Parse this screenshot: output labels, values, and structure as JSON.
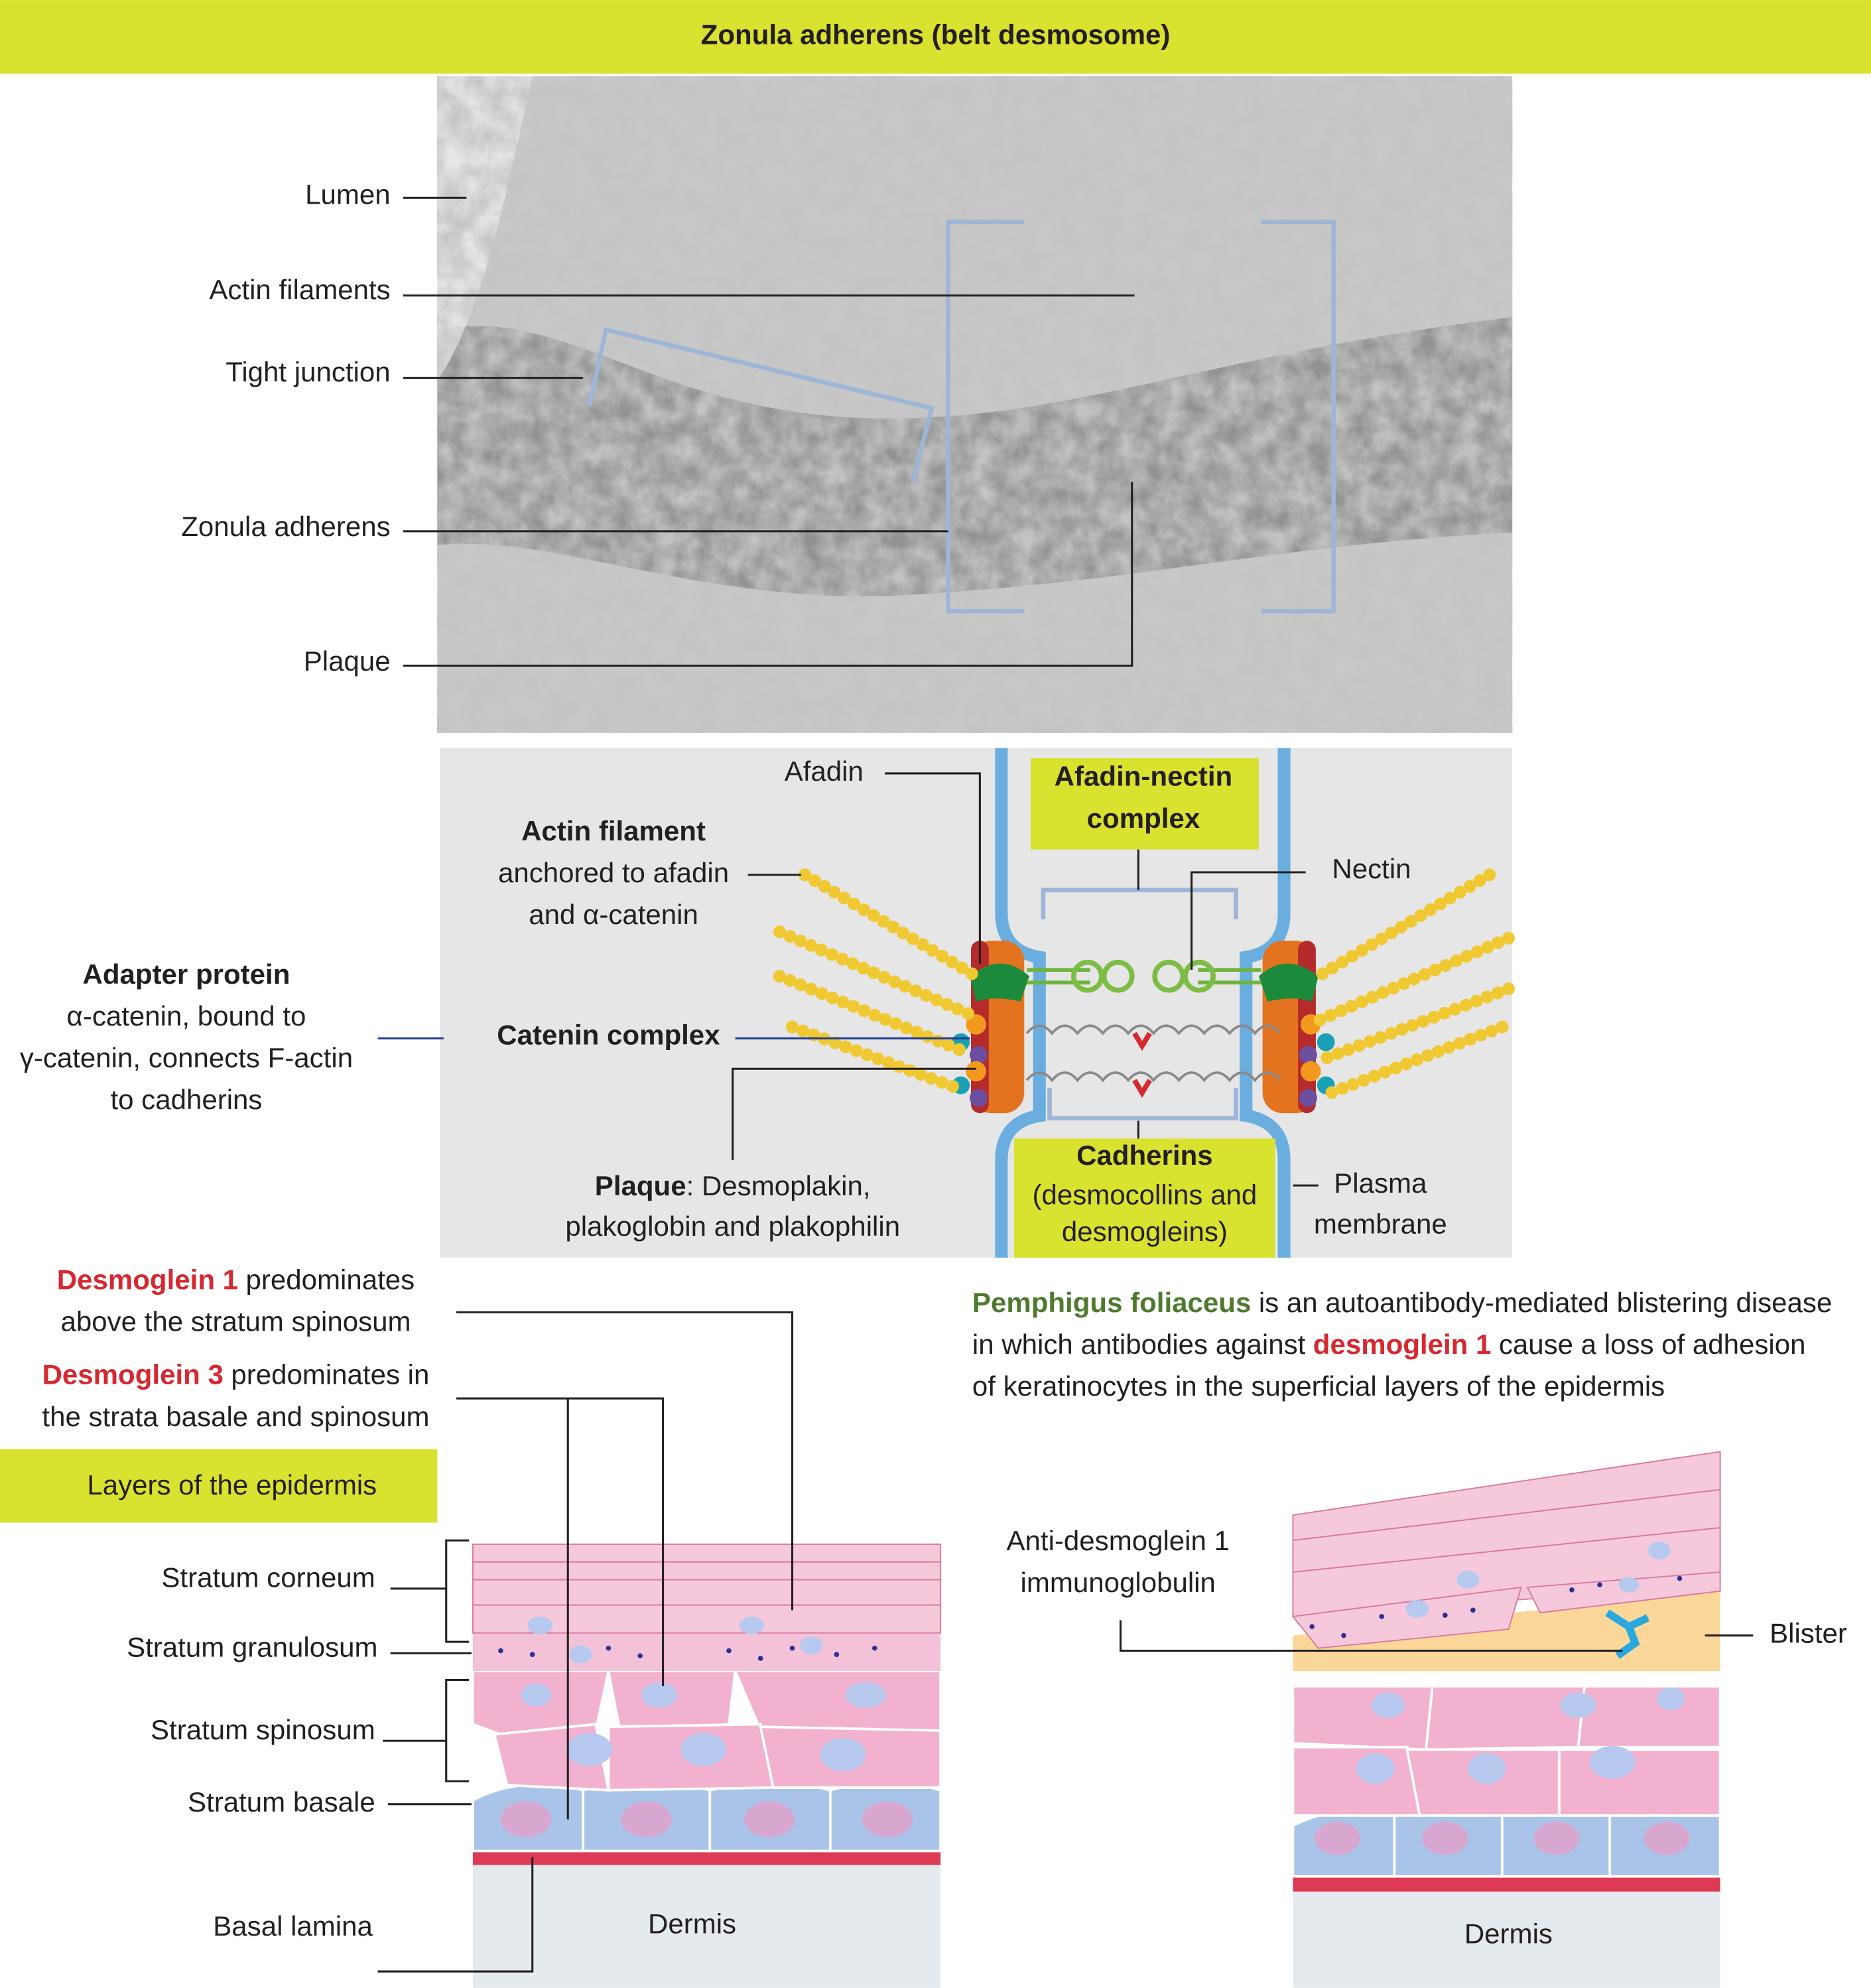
{
  "header": {
    "title": "Zonula adherens (belt desmosome)"
  },
  "micrograph": {
    "labels": [
      "Lumen",
      "Actin filaments",
      "Tight junction",
      "Zonula adherens",
      "Plaque"
    ]
  },
  "schematic": {
    "afadin": "Afadin",
    "afadin_nectin": [
      "Afadin-nectin",
      "complex"
    ],
    "actin_filament": {
      "title": "Actin filament",
      "lines": [
        "anchored to afadin",
        "and α-catenin"
      ]
    },
    "nectin": "Nectin",
    "adapter_protein": {
      "title": "Adapter protein",
      "lines": [
        "α-catenin, bound to",
        "γ-catenin, connects F-actin",
        "to cadherins"
      ]
    },
    "catenin_complex": "Catenin complex",
    "plaque": {
      "title": "Plaque",
      "text": ": Desmoplakin,",
      "line2": "plakoglobin and plakophilin"
    },
    "cadherins": {
      "title": "Cadherins",
      "lines": [
        "(desmocollins and",
        "desmogleins)"
      ]
    },
    "plasma_membrane": [
      "Plasma",
      "membrane"
    ]
  },
  "epidermis": {
    "desmoglein1": {
      "name": "Desmoglein 1",
      "text": "predominates",
      "line2": "above the stratum spinosum"
    },
    "desmoglein3": {
      "name": "Desmoglein 3",
      "text": "predominates in",
      "line2": "the strata basale and spinosum"
    },
    "layers_title": "Layers of the epidermis",
    "layers": [
      "Stratum corneum",
      "Stratum granulosum",
      "Stratum spinosum",
      "Stratum basale",
      "Basal lamina"
    ],
    "dermis": "Dermis"
  },
  "pemphigus": {
    "name": "Pemphigus foliaceus",
    "text1": "is an autoantibody-mediated blistering disease",
    "line2a": "in which antibodies against",
    "antigen": "desmoglein 1",
    "line2b": "cause a loss of adhesion",
    "line3": "of keratinocytes in the superficial layers of the epidermis",
    "antibody": [
      "Anti-desmoglein 1",
      "immunoglobulin"
    ],
    "blister": "Blister",
    "dermis": "Dermis"
  }
}
